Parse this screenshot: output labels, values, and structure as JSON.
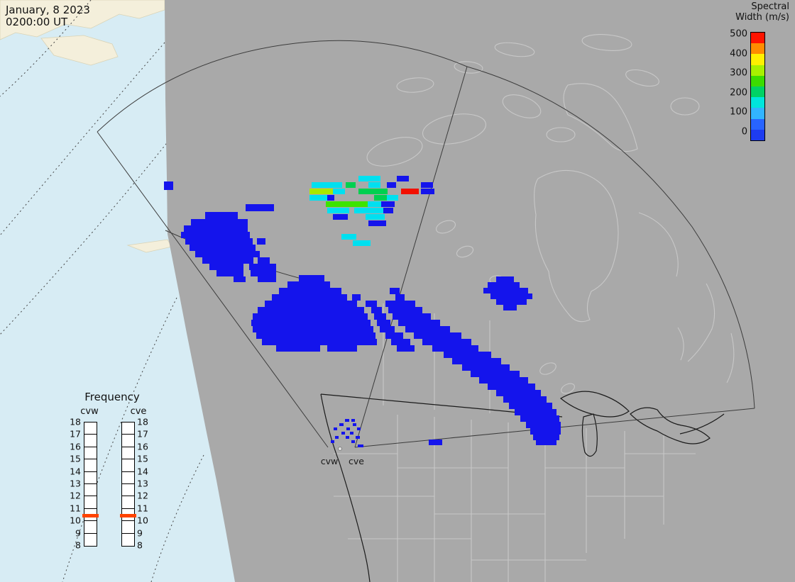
{
  "header": {
    "date_line": "January, 8 2023",
    "time_line": "0200:00 UT"
  },
  "colorbar": {
    "title_line1": "Spectral",
    "title_line2": "Width (m/s)",
    "tick_labels": [
      "500",
      "400",
      "300",
      "200",
      "100",
      "0"
    ],
    "band_colors": [
      "#ff1400",
      "#ff8c00",
      "#fff000",
      "#a8f000",
      "#3cdc00",
      "#00d264",
      "#00e6dc",
      "#32b4ff",
      "#2864ff",
      "#1e3cf0"
    ]
  },
  "frequency_panel": {
    "title": "Frequency",
    "scale_labels": [
      "18",
      "17",
      "16",
      "15",
      "14",
      "13",
      "12",
      "11",
      "10",
      "9",
      "8"
    ],
    "scale_min": 8,
    "scale_max": 18,
    "marker_color": "#ff4400",
    "ladders": [
      {
        "label": "cvw",
        "marker_freq_mhz": 10.4
      },
      {
        "label": "cve",
        "marker_freq_mhz": 10.4
      }
    ]
  },
  "map": {
    "radar_site_labels": [
      "cvw",
      "cve"
    ],
    "colors": {
      "ocean": "#d7ecf4",
      "land": "#a9a9a9",
      "land_outline": "#c8c8c8",
      "political_black": "#1a1a1a",
      "cream_land": "#f4efdb",
      "fan_line": "#3c3c3c",
      "echo_blue": "#1414ec"
    },
    "echo_groups": [
      {
        "color": "#1414ec",
        "rows": [
          [
            256,
            12,
            [
              [
                231,
                13
              ]
            ]
          ],
          [
            288,
            10,
            [
              [
                346,
                40
              ]
            ]
          ],
          [
            299,
            10,
            [
              [
                289,
                46
              ]
            ]
          ],
          [
            309,
            9,
            [
              [
                269,
                80
              ]
            ]
          ],
          [
            318,
            9,
            [
              [
                259,
                90
              ]
            ]
          ],
          [
            327,
            9,
            [
              [
                255,
                97
              ]
            ]
          ],
          [
            336,
            9,
            [
              [
                261,
                95
              ],
              [
                362,
                12
              ]
            ]
          ],
          [
            345,
            9,
            [
              [
                267,
                93
              ]
            ]
          ],
          [
            354,
            9,
            [
              [
                275,
                91
              ]
            ]
          ],
          [
            363,
            9,
            [
              [
                285,
                72
              ],
              [
                363,
                17
              ]
            ]
          ],
          [
            372,
            9,
            [
              [
                295,
                48
              ],
              [
                351,
                38
              ]
            ]
          ],
          [
            381,
            9,
            [
              [
                305,
                38
              ],
              [
                353,
                36
              ]
            ]
          ],
          [
            390,
            8,
            [
              [
                329,
                17
              ],
              [
                363,
                26
              ]
            ]
          ],
          [
            248,
            8,
            [
              [
                559,
                17
              ]
            ]
          ],
          [
            257,
            8,
            [
              [
                545,
                13
              ],
              [
                593,
                17
              ]
            ]
          ],
          [
            266,
            8,
            [
              [
                593,
                19
              ]
            ]
          ],
          [
            275,
            8,
            [
              [
                461,
                10
              ]
            ]
          ],
          [
            284,
            8,
            [
              [
                537,
                19
              ]
            ]
          ],
          [
            293,
            8,
            [
              [
                539,
                15
              ]
            ]
          ],
          [
            302,
            8,
            [
              [
                469,
                21
              ]
            ]
          ],
          [
            311,
            8,
            [
              [
                519,
                25
              ]
            ]
          ],
          [
            388,
            9,
            [
              [
                421,
                36
              ]
            ]
          ],
          [
            397,
            9,
            [
              [
                405,
                60
              ]
            ]
          ],
          [
            406,
            9,
            [
              [
                393,
                88
              ],
              [
                549,
                14
              ]
            ]
          ],
          [
            415,
            9,
            [
              [
                383,
                106
              ],
              [
                496,
                12
              ],
              [
                557,
                13
              ]
            ]
          ],
          [
            424,
            9,
            [
              [
                373,
                130
              ],
              [
                515,
                16
              ],
              [
                543,
                42
              ]
            ]
          ],
          [
            433,
            9,
            [
              [
                363,
                150
              ],
              [
                523,
                15
              ],
              [
                547,
                48
              ]
            ]
          ],
          [
            442,
            9,
            [
              [
                356,
                162
              ],
              [
                527,
                17
              ],
              [
                553,
                54
              ]
            ]
          ],
          [
            451,
            9,
            [
              [
                354,
                168
              ],
              [
                531,
                19
              ],
              [
                561,
                59
              ]
            ]
          ],
          [
            460,
            9,
            [
              [
                356,
                170
              ],
              [
                535,
                21
              ],
              [
                571,
                63
              ]
            ]
          ],
          [
            469,
            9,
            [
              [
                361,
                168
              ],
              [
                543,
                25
              ],
              [
                583,
                67
              ]
            ]
          ],
          [
            478,
            9,
            [
              [
                369,
                162
              ],
              [
                551,
                27
              ],
              [
                595,
                69
              ]
            ]
          ],
          [
            487,
            9,
            [
              [
                389,
                62
              ],
              [
                461,
                42
              ],
              [
                559,
                25
              ],
              [
                609,
                65
              ]
            ]
          ],
          [
            496,
            9,
            [
              [
                625,
                67
              ]
            ]
          ],
          [
            505,
            9,
            [
              [
                637,
                69
              ]
            ]
          ],
          [
            514,
            9,
            [
              [
                651,
                67
              ]
            ]
          ],
          [
            523,
            9,
            [
              [
                663,
                69
              ]
            ]
          ],
          [
            532,
            9,
            [
              [
                675,
                69
              ]
            ]
          ],
          [
            541,
            9,
            [
              [
                687,
                67
              ]
            ]
          ],
          [
            550,
            9,
            [
              [
                699,
                63
              ]
            ]
          ],
          [
            559,
            9,
            [
              [
                709,
                61
              ]
            ]
          ],
          [
            568,
            9,
            [
              [
                717,
                61
              ]
            ]
          ],
          [
            577,
            9,
            [
              [
                725,
                59
              ]
            ]
          ],
          [
            586,
            9,
            [
              [
                733,
                55
              ]
            ]
          ],
          [
            595,
            9,
            [
              [
                741,
                49
              ]
            ]
          ],
          [
            604,
            9,
            [
              [
                747,
                43
              ]
            ]
          ],
          [
            613,
            8,
            [
              [
                751,
                37
              ]
            ]
          ],
          [
            620,
            8,
            [
              [
                604,
                19
              ],
              [
                755,
                29
              ]
            ]
          ],
          [
            390,
            8,
            [
              [
                699,
                25
              ]
            ]
          ],
          [
            398,
            8,
            [
              [
                687,
                45
              ]
            ]
          ],
          [
            406,
            8,
            [
              [
                681,
                63
              ]
            ]
          ],
          [
            414,
            8,
            [
              [
                691,
                59
              ]
            ]
          ],
          [
            422,
            8,
            [
              [
                699,
                43
              ]
            ]
          ],
          [
            430,
            8,
            [
              [
                709,
                19
              ]
            ]
          ],
          [
            591,
            4,
            [
              [
                486,
                6
              ],
              [
                495,
                5
              ]
            ]
          ],
          [
            597,
            4,
            [
              [
                478,
                6
              ],
              [
                497,
                5
              ]
            ]
          ],
          [
            603,
            4,
            [
              [
                470,
                5
              ],
              [
                488,
                5
              ],
              [
                503,
                5
              ]
            ]
          ],
          [
            609,
            4,
            [
              [
                481,
                5
              ],
              [
                493,
                5
              ]
            ]
          ],
          [
            615,
            4,
            [
              [
                472,
                5
              ],
              [
                487,
                5
              ],
              [
                501,
                6
              ]
            ]
          ],
          [
            621,
            4,
            [
              [
                466,
                5
              ],
              [
                495,
                5
              ]
            ]
          ],
          [
            627,
            4,
            [
              [
                504,
                8
              ]
            ]
          ]
        ]
      },
      {
        "color": "#00e0f0",
        "rows": [
          [
            248,
            8,
            [
              [
                505,
                31
              ]
            ]
          ],
          [
            257,
            8,
            [
              [
                439,
                43
              ],
              [
                519,
                17
              ]
            ]
          ],
          [
            266,
            8,
            [
              [
                469,
                17
              ]
            ]
          ],
          [
            275,
            8,
            [
              [
                436,
                25
              ],
              [
                544,
                17
              ]
            ]
          ],
          [
            284,
            8,
            [
              [
                517,
                20
              ]
            ]
          ],
          [
            293,
            8,
            [
              [
                461,
                31
              ],
              [
                499,
                41
              ]
            ]
          ],
          [
            302,
            8,
            [
              [
                515,
                27
              ]
            ]
          ],
          [
            330,
            8,
            [
              [
                481,
                21
              ]
            ]
          ],
          [
            339,
            8,
            [
              [
                497,
                25
              ]
            ]
          ]
        ]
      },
      {
        "color": "#00d050",
        "rows": [
          [
            257,
            8,
            [
              [
                487,
                14
              ]
            ]
          ],
          [
            266,
            8,
            [
              [
                505,
                41
              ]
            ]
          ],
          [
            275,
            8,
            [
              [
                527,
                18
              ]
            ]
          ]
        ]
      },
      {
        "color": "#3ce400",
        "rows": [
          [
            284,
            8,
            [
              [
                459,
                59
              ]
            ]
          ]
        ]
      },
      {
        "color": "#aae800",
        "rows": [
          [
            266,
            8,
            [
              [
                436,
                33
              ]
            ]
          ]
        ]
      },
      {
        "color": "#f21000",
        "rows": [
          [
            266,
            8,
            [
              [
                565,
                25
              ]
            ]
          ]
        ]
      }
    ]
  }
}
